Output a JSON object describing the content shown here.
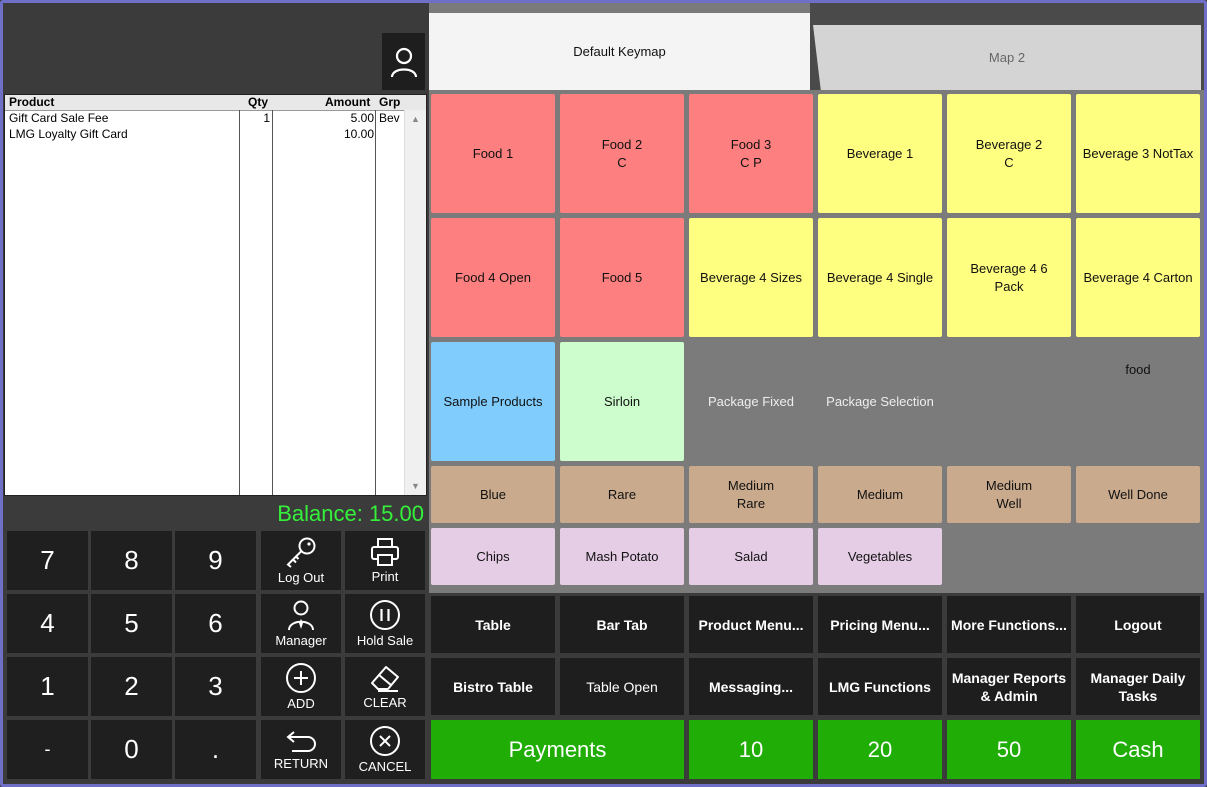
{
  "tabs": [
    {
      "label": "Default Keymap"
    },
    {
      "label": "Map 2"
    }
  ],
  "order": {
    "headers": {
      "product": "Product",
      "qty": "Qty",
      "amount": "Amount",
      "grp": "Grp"
    },
    "rows": [
      {
        "product": "Gift Card Sale Fee",
        "qty": "1",
        "amount": "5.00",
        "grp": "Bev"
      },
      {
        "product": "LMG Loyalty Gift Card",
        "qty": "",
        "amount": "10.00",
        "grp": ""
      }
    ]
  },
  "balance": "Balance: 15.00",
  "keypad": {
    "k7": "7",
    "k8": "8",
    "k9": "9",
    "k4": "4",
    "k5": "5",
    "k6": "6",
    "k1": "1",
    "k2": "2",
    "k3": "3",
    "kminus": "-",
    "k0": "0",
    "kdot": "."
  },
  "actions": {
    "logout": "Log Out",
    "print": "Print",
    "manager": "Manager",
    "hold": "Hold Sale",
    "add": "ADD",
    "clear": "CLEAR",
    "ret": "RETURN",
    "cancel": "CANCEL"
  },
  "products": {
    "food1": "Food 1",
    "food2": "Food 2\nC",
    "food3": "Food 3\nC P",
    "bev1": "Beverage 1",
    "bev2": "Beverage 2\nC",
    "bev3": "Beverage 3 NotTax",
    "food4": "Food 4 Open",
    "food5": "Food 5",
    "bev4sizes": "Beverage 4 Sizes",
    "bev4single": "Beverage 4 Single",
    "bev46": "Beverage 4 6\nPack",
    "bev4carton": "Beverage 4 Carton",
    "sample": "Sample Products",
    "sirloin": "Sirloin",
    "pkgfixed": "Package Fixed",
    "pkgsel": "Package Selection",
    "food": "food",
    "blue": "Blue",
    "rare": "Rare",
    "medrare": "Medium\nRare",
    "medium": "Medium",
    "medwell": "Medium\nWell",
    "welldone": "Well Done",
    "chips": "Chips",
    "mash": "Mash Potato",
    "salad": "Salad",
    "veg": "Vegetables"
  },
  "functions": {
    "table": "Table",
    "bartab": "Bar Tab",
    "productmenu": "Product Menu...",
    "pricingmenu": "Pricing Menu...",
    "morefunc": "More Functions...",
    "logout": "Logout",
    "bistro": "Bistro Table",
    "tableopen": "Table Open",
    "messaging": "Messaging...",
    "lmg": "LMG Functions",
    "mgrreports": "Manager Reports\n& Admin",
    "mgrdaily": "Manager Daily\nTasks"
  },
  "payments": {
    "payments": "Payments",
    "p10": "10",
    "p20": "20",
    "p50": "50",
    "cash": "Cash"
  },
  "colors": {
    "red": "#fe7f7f",
    "yellow": "#fefe80",
    "blue": "#80cdfd",
    "green": "#cdfdcd",
    "tan": "#c9aa8d",
    "lilac": "#e6cde6",
    "pay": "#1fad06",
    "balance": "#35f03a"
  }
}
